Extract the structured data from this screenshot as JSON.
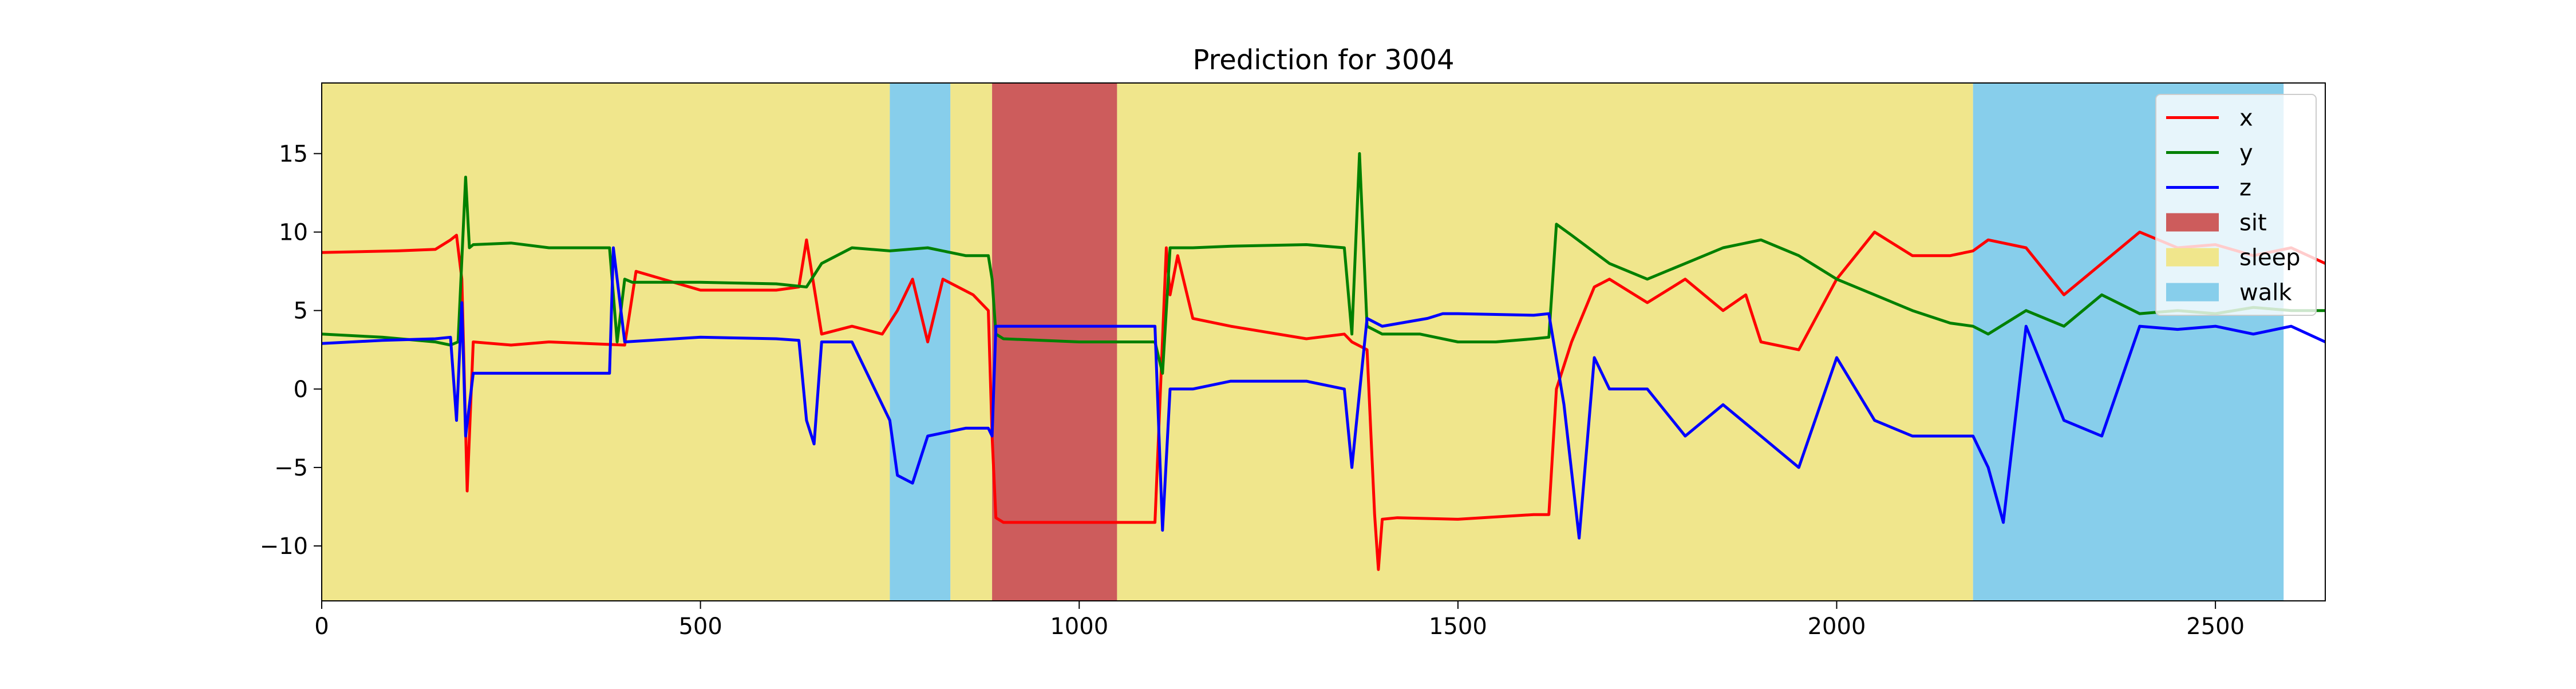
{
  "chart_data": {
    "type": "line",
    "title": "Prediction for 3004",
    "xlabel": "",
    "ylabel": "",
    "xlim": [
      0,
      2645
    ],
    "ylim": [
      -13.5,
      19.5
    ],
    "xticks": [
      0,
      500,
      1000,
      1500,
      2000,
      2500
    ],
    "yticks": [
      -10,
      -5,
      0,
      5,
      10,
      15
    ],
    "grid": false,
    "legend": {
      "placement": "top-right",
      "entries": [
        "x",
        "y",
        "z",
        "sit",
        "sleep",
        "walk"
      ]
    },
    "colors": {
      "x": "#ff0000",
      "y": "#008000",
      "z": "#0000ff",
      "sit": "#cd5c5c",
      "sleep": "#f0e68c",
      "walk": "#87ceeb"
    },
    "label_regions": [
      {
        "label": "sleep",
        "start": 0,
        "end": 750
      },
      {
        "label": "walk",
        "start": 750,
        "end": 830
      },
      {
        "label": "sleep",
        "start": 830,
        "end": 885
      },
      {
        "label": "sit",
        "start": 885,
        "end": 1050
      },
      {
        "label": "sleep",
        "start": 1050,
        "end": 2180
      },
      {
        "label": "walk",
        "start": 2180,
        "end": 2590
      }
    ],
    "series": [
      {
        "name": "x",
        "x": [
          0,
          100,
          150,
          170,
          178,
          185,
          192,
          200,
          250,
          300,
          400,
          415,
          500,
          600,
          630,
          640,
          660,
          700,
          740,
          760,
          780,
          800,
          820,
          860,
          880,
          885,
          890,
          900,
          1000,
          1050,
          1100,
          1115,
          1120,
          1130,
          1150,
          1200,
          1300,
          1350,
          1360,
          1380,
          1390,
          1395,
          1400,
          1420,
          1500,
          1600,
          1620,
          1630,
          1650,
          1680,
          1700,
          1750,
          1800,
          1850,
          1880,
          1900,
          1950,
          2000,
          2050,
          2100,
          2150,
          2180,
          2200,
          2250,
          2300,
          2350,
          2400,
          2450,
          2500,
          2550,
          2600,
          2645
        ],
        "values": [
          8.7,
          8.8,
          8.9,
          9.5,
          9.8,
          7,
          -6.5,
          3,
          2.8,
          3,
          2.8,
          7.5,
          6.3,
          6.3,
          6.5,
          9.5,
          3.5,
          4,
          3.5,
          5,
          7,
          3,
          7,
          6,
          5,
          -3,
          -8.2,
          -8.5,
          -8.5,
          -8.5,
          -8.5,
          9,
          6,
          8.5,
          4.5,
          4,
          3.2,
          3.5,
          3,
          2.5,
          -8,
          -11.5,
          -8.3,
          -8.2,
          -8.3,
          -8,
          -8,
          0,
          3,
          6.5,
          7,
          5.5,
          7,
          5,
          6,
          3,
          2.5,
          7,
          10,
          8.5,
          8.5,
          8.8,
          9.5,
          9,
          6,
          8,
          10,
          9,
          9.2,
          8.5,
          9,
          8
        ]
      },
      {
        "name": "y",
        "x": [
          0,
          80,
          150,
          170,
          180,
          190,
          195,
          200,
          250,
          300,
          380,
          390,
          400,
          410,
          500,
          600,
          640,
          660,
          700,
          750,
          800,
          850,
          880,
          885,
          890,
          900,
          1000,
          1050,
          1100,
          1110,
          1120,
          1150,
          1200,
          1300,
          1350,
          1360,
          1370,
          1380,
          1400,
          1450,
          1500,
          1550,
          1600,
          1620,
          1630,
          1650,
          1700,
          1750,
          1800,
          1850,
          1900,
          1950,
          2000,
          2050,
          2100,
          2150,
          2180,
          2200,
          2250,
          2300,
          2350,
          2400,
          2450,
          2500,
          2550,
          2600,
          2645
        ],
        "values": [
          3.5,
          3.3,
          3,
          2.8,
          3,
          13.5,
          9,
          9.2,
          9.3,
          9,
          9,
          3,
          7,
          6.8,
          6.8,
          6.7,
          6.5,
          8,
          9,
          8.8,
          9,
          8.5,
          8.5,
          7,
          3.5,
          3.2,
          3,
          3,
          3,
          1,
          9,
          9,
          9.1,
          9.2,
          9,
          3.5,
          15,
          4,
          3.5,
          3.5,
          3,
          3,
          3.2,
          3.3,
          10.5,
          9.8,
          8,
          7,
          8,
          9,
          9.5,
          8.5,
          7,
          6,
          5,
          4.2,
          4,
          3.5,
          5,
          4,
          6,
          4.8,
          5,
          4.8,
          5.2,
          5,
          5
        ]
      },
      {
        "name": "z",
        "x": [
          0,
          80,
          150,
          170,
          178,
          185,
          190,
          200,
          250,
          300,
          380,
          385,
          400,
          500,
          600,
          630,
          640,
          650,
          660,
          700,
          720,
          750,
          760,
          780,
          800,
          850,
          880,
          885,
          890,
          900,
          1000,
          1050,
          1100,
          1110,
          1120,
          1150,
          1200,
          1300,
          1350,
          1360,
          1380,
          1400,
          1460,
          1480,
          1500,
          1600,
          1620,
          1640,
          1660,
          1680,
          1700,
          1750,
          1800,
          1850,
          1900,
          1950,
          2000,
          2050,
          2100,
          2150,
          2180,
          2200,
          2220,
          2250,
          2300,
          2350,
          2400,
          2450,
          2500,
          2550,
          2600,
          2645
        ],
        "values": [
          2.9,
          3.1,
          3.2,
          3.3,
          -2,
          5.5,
          -3,
          1,
          1,
          1,
          1,
          9,
          3,
          3.3,
          3.2,
          3.1,
          -2,
          -3.5,
          3,
          3,
          1,
          -2,
          -5.5,
          -6,
          -3,
          -2.5,
          -2.5,
          -3,
          4,
          4,
          4,
          4,
          4,
          -9,
          0,
          0,
          0.5,
          0.5,
          0,
          -5,
          4.5,
          4,
          4.5,
          4.8,
          4.8,
          4.7,
          4.8,
          -1,
          -9.5,
          2,
          0,
          0,
          -3,
          -1,
          -3,
          -5,
          2,
          -2,
          -3,
          -3,
          -3,
          -5,
          -8.5,
          4,
          -2,
          -3,
          4,
          3.8,
          4,
          3.5,
          4,
          3
        ]
      }
    ]
  }
}
